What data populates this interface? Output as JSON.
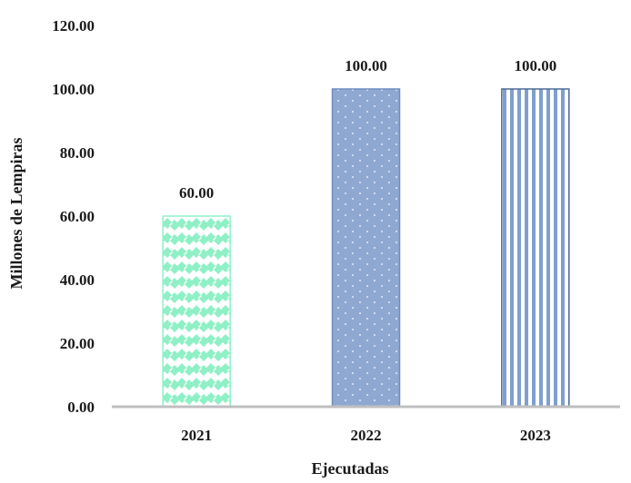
{
  "chart_data": {
    "type": "bar",
    "categories": [
      "2021",
      "2022",
      "2023"
    ],
    "values": [
      60.0,
      100.0,
      100.0
    ],
    "data_labels": [
      "60.00",
      "100.00",
      "100.00"
    ],
    "title": "",
    "xlabel": "Ejecutadas",
    "ylabel": "Millones de Lempiras",
    "ylim": [
      0,
      120
    ],
    "yticks": [
      "0.00",
      "20.00",
      "40.00",
      "60.00",
      "80.00",
      "100.00",
      "120.00"
    ],
    "grid": false,
    "legend": "none",
    "bar_styles": [
      {
        "pattern": "diamond-checker",
        "fill": "#8ff0c6",
        "background": "#ffffff",
        "stroke": "#8ff0c6"
      },
      {
        "pattern": "dots",
        "fill": "#8fa8d2",
        "background": "#8fa8d2",
        "stroke": "#6f8cc0"
      },
      {
        "pattern": "vertical-stripes",
        "fill": "#7f9fcf",
        "background": "#ffffff",
        "stroke": "#4f6a96"
      }
    ],
    "axis_color": "#bfbfbf"
  }
}
